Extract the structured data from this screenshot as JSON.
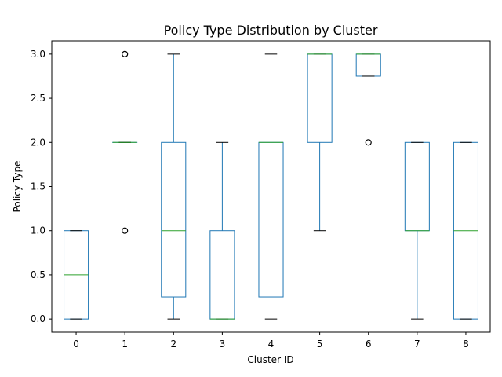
{
  "chart_data": {
    "type": "box",
    "title": "Policy Type Distribution by Cluster",
    "xlabel": "Cluster ID",
    "ylabel": "Policy Type",
    "categories": [
      "0",
      "1",
      "2",
      "3",
      "4",
      "5",
      "6",
      "7",
      "8"
    ],
    "ylim": [
      -0.15,
      3.15
    ],
    "yticks": [
      0.0,
      0.5,
      1.0,
      1.5,
      2.0,
      2.5,
      3.0
    ],
    "ytick_labels": [
      "0.0",
      "0.5",
      "1.0",
      "1.5",
      "2.0",
      "2.5",
      "3.0"
    ],
    "grid": false,
    "boxes": [
      {
        "category": "0",
        "whisker_low": 0,
        "q1": 0,
        "median": 0.5,
        "q3": 1,
        "whisker_high": 1,
        "outliers": []
      },
      {
        "category": "1",
        "whisker_low": 2,
        "q1": 2,
        "median": 2,
        "q3": 2,
        "whisker_high": 2,
        "outliers": [
          3,
          1
        ]
      },
      {
        "category": "2",
        "whisker_low": 0,
        "q1": 0.25,
        "median": 1,
        "q3": 2,
        "whisker_high": 3,
        "outliers": []
      },
      {
        "category": "3",
        "whisker_low": 0,
        "q1": 0,
        "median": 0,
        "q3": 1,
        "whisker_high": 2,
        "outliers": []
      },
      {
        "category": "4",
        "whisker_low": 0,
        "q1": 0.25,
        "median": 2,
        "q3": 2,
        "whisker_high": 3,
        "outliers": []
      },
      {
        "category": "5",
        "whisker_low": 1,
        "q1": 2,
        "median": 3,
        "q3": 3,
        "whisker_high": 3,
        "outliers": []
      },
      {
        "category": "6",
        "whisker_low": 2.75,
        "q1": 2.75,
        "median": 3,
        "q3": 3,
        "whisker_high": 3,
        "outliers": [
          2
        ]
      },
      {
        "category": "7",
        "whisker_low": 0,
        "q1": 1,
        "median": 1,
        "q3": 2,
        "whisker_high": 2,
        "outliers": []
      },
      {
        "category": "8",
        "whisker_low": 0,
        "q1": 0,
        "median": 1,
        "q3": 2,
        "whisker_high": 2,
        "outliers": []
      }
    ],
    "colors": {
      "box": "#1f77b4",
      "median": "#2ca02c",
      "cap": "#000000",
      "outlier": "#000000",
      "axes": "#000000"
    }
  }
}
